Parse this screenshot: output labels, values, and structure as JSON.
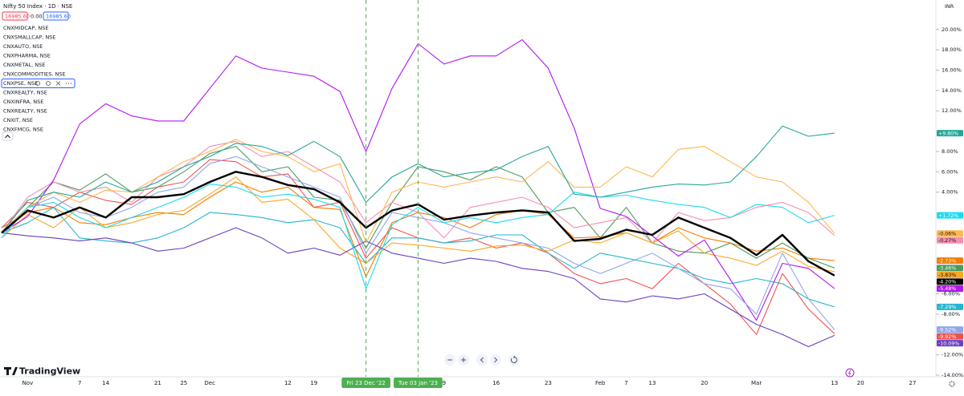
{
  "header": {
    "prices": [
      "16985.60",
      "0.00",
      "16985.60"
    ],
    "currency": "INR",
    "brand": "TradingView"
  },
  "chart_data": {
    "type": "line",
    "title": "Nifty 50 Index · 1D · NSE",
    "categories": [
      null,
      "Nov",
      null,
      "7",
      "14",
      null,
      "21",
      "25",
      "Dec",
      null,
      null,
      "12",
      "19",
      null,
      "Fri 23 Dec '22",
      null,
      "Tue 03 Jan '23",
      "9",
      null,
      "16",
      null,
      "23",
      null,
      "Feb",
      "7",
      "13",
      null,
      "20",
      null,
      "Mar",
      null,
      null,
      "13",
      "20",
      null,
      "27"
    ],
    "ylim": [
      -14,
      22.9
    ],
    "yticks": [
      {
        "value": 20,
        "label": "20.00%"
      },
      {
        "value": 18,
        "label": "18.00%"
      },
      {
        "value": 16,
        "label": "16.00%"
      },
      {
        "value": 14,
        "label": "14.00%"
      },
      {
        "value": 12,
        "label": "12.00%"
      },
      {
        "value": 8,
        "label": "8.00%"
      },
      {
        "value": 6,
        "label": "6.00%"
      },
      {
        "value": 4,
        "label": "4.00%"
      },
      {
        "value": -6,
        "label": "-6.00%"
      },
      {
        "value": -8,
        "label": "-8.00%"
      },
      {
        "value": -12,
        "label": "-12.00%"
      },
      {
        "value": -14,
        "label": "-14.00%"
      }
    ],
    "series": [
      {
        "color": "#000000",
        "values": [
          0,
          2.2,
          1.5,
          2.5,
          1.5,
          3.5,
          3.5,
          3.8,
          5,
          6,
          5.5,
          4.7,
          4.3,
          3,
          0.5,
          2.2,
          2.8,
          1.3,
          1.7,
          2,
          2.2,
          2,
          -0.8,
          -0.6,
          0.3,
          -0.2,
          1.5,
          0.5,
          -0.5,
          -2.2,
          -0.2,
          -2.8,
          -4.2,
          null,
          null,
          null
        ],
        "value_labels": [
          null,
          null,
          null,
          null,
          null,
          null,
          null,
          null,
          null,
          null,
          null,
          null,
          null,
          null,
          null,
          null,
          null,
          null,
          null,
          null,
          null,
          null,
          null,
          null,
          null,
          null,
          null,
          null,
          null,
          null,
          null,
          null,
          "-4.20%",
          null,
          null,
          null
        ]
      },
      {
        "name": "CNXMIDCAP, NSE",
        "color": "#f57c00",
        "values": [
          0.5,
          2,
          2.5,
          1,
          0.8,
          1.5,
          2,
          1.8,
          3.5,
          5,
          4,
          4.5,
          2.5,
          2.3,
          -4.3,
          1,
          2,
          1.5,
          0.5,
          1.8,
          2.2,
          1.8,
          -0.5,
          -0.4,
          0,
          -1,
          0.5,
          -0.5,
          -1,
          -1.8,
          -1.5,
          -2.5,
          -2.73,
          null,
          null,
          null
        ],
        "value_labels": [
          null,
          null,
          null,
          null,
          null,
          null,
          null,
          null,
          null,
          null,
          null,
          null,
          null,
          null,
          null,
          null,
          null,
          null,
          null,
          null,
          null,
          null,
          null,
          null,
          null,
          null,
          null,
          null,
          null,
          null,
          null,
          null,
          "-2.73%",
          null,
          null,
          null
        ]
      },
      {
        "name": "CNXSMALLCAP, NSE",
        "color": "#ef5350",
        "values": [
          0.5,
          3,
          2.5,
          4,
          3.2,
          2.8,
          4.5,
          5,
          7.2,
          7,
          5.5,
          5.8,
          2.5,
          3,
          -2.5,
          0.5,
          -0.5,
          -1,
          -0.5,
          -1.5,
          -1,
          -2,
          -4,
          -5,
          -4.5,
          -5.5,
          -3,
          -5,
          -7,
          -10,
          -4,
          -7.5,
          -9.92,
          null,
          null,
          null
        ],
        "value_labels": [
          null,
          null,
          null,
          null,
          null,
          null,
          null,
          null,
          null,
          null,
          null,
          null,
          null,
          null,
          null,
          null,
          null,
          null,
          null,
          null,
          null,
          null,
          null,
          null,
          null,
          null,
          null,
          null,
          null,
          null,
          null,
          null,
          "-9.92%",
          null,
          null,
          null
        ]
      },
      {
        "name": "CNXAUTO, NSE",
        "color": "#4e9a5a",
        "values": [
          0,
          2.5,
          5,
          4.2,
          5.8,
          4,
          4.5,
          6,
          7.8,
          8.5,
          6,
          6.5,
          3.5,
          3.2,
          -1.5,
          3,
          6.5,
          6,
          5.2,
          6.5,
          5.5,
          2,
          2.5,
          -0.5,
          2.5,
          -1,
          -1.8,
          -2,
          -1,
          -2.5,
          -1,
          -2.5,
          -3.46,
          null,
          null,
          null
        ],
        "value_labels": [
          null,
          null,
          null,
          null,
          null,
          null,
          null,
          null,
          null,
          null,
          null,
          null,
          null,
          null,
          null,
          null,
          null,
          null,
          null,
          null,
          null,
          null,
          null,
          null,
          null,
          null,
          null,
          null,
          null,
          null,
          null,
          null,
          "-3.46%",
          null,
          null,
          null
        ]
      },
      {
        "name": "CNXPHARMA, NSE",
        "color": "#26b5d0",
        "values": [
          0,
          1,
          2.5,
          -0.5,
          -0.8,
          -1,
          -0.5,
          0.5,
          2,
          1.8,
          1.5,
          1,
          1.3,
          0.5,
          -3,
          -0.5,
          -0.5,
          -1,
          -0.8,
          -0.2,
          -0.2,
          -2,
          -3.5,
          -2,
          -2.5,
          -3,
          -3.5,
          -4.5,
          -5,
          -4.5,
          -5,
          -6.5,
          -7.29,
          null,
          null,
          null
        ],
        "value_labels": [
          null,
          null,
          null,
          null,
          null,
          null,
          null,
          null,
          null,
          null,
          null,
          null,
          null,
          null,
          null,
          null,
          null,
          null,
          null,
          null,
          null,
          null,
          null,
          null,
          null,
          null,
          null,
          null,
          null,
          null,
          null,
          null,
          "-7.29%",
          null,
          null,
          null
        ]
      },
      {
        "name": "CNXMETAL, NSE",
        "color": "#f48fb1",
        "values": [
          0,
          3.5,
          5,
          4,
          4.5,
          3,
          5.5,
          6.5,
          8.5,
          9,
          7.5,
          8,
          6.5,
          5,
          1,
          3,
          2,
          -0.5,
          2.5,
          3,
          3.5,
          2.5,
          0.5,
          1,
          1.5,
          -1,
          2,
          1.2,
          1.5,
          2.5,
          3,
          2,
          -0.27,
          null,
          null,
          null
        ],
        "value_labels": [
          null,
          null,
          null,
          null,
          null,
          null,
          null,
          null,
          null,
          null,
          null,
          null,
          null,
          null,
          null,
          null,
          null,
          null,
          null,
          null,
          null,
          null,
          null,
          null,
          null,
          null,
          null,
          null,
          null,
          null,
          null,
          null,
          "-0.27%",
          null,
          null,
          null
        ]
      },
      {
        "name": "CNXCOMMODITIES, NSE",
        "color": "#f9a825",
        "values": [
          -0.5,
          1.8,
          0.5,
          2.5,
          0.5,
          1,
          1.8,
          2.2,
          3.8,
          5.5,
          3,
          3.3,
          1.3,
          -1.5,
          -3,
          -1,
          -1.2,
          -1.5,
          -1.8,
          -1.3,
          -1.2,
          -1.8,
          -0.7,
          -1,
          0,
          -1,
          0.2,
          -2,
          -2.5,
          -3.2,
          -1.8,
          -3.3,
          -3.83,
          null,
          null,
          null
        ],
        "value_labels": [
          null,
          null,
          null,
          null,
          null,
          null,
          null,
          null,
          null,
          null,
          null,
          null,
          null,
          null,
          null,
          null,
          null,
          null,
          null,
          null,
          null,
          null,
          null,
          null,
          null,
          null,
          null,
          null,
          null,
          null,
          null,
          null,
          "-3.83%",
          null,
          null,
          null
        ]
      },
      {
        "name": "CNXPSE, NSE",
        "color": "#b316f2",
        "values": [
          0,
          1.6,
          5.2,
          10.7,
          12.7,
          11.5,
          11,
          11,
          14.2,
          17.4,
          16.2,
          15.8,
          15.4,
          13.9,
          8,
          14.2,
          18.6,
          16.6,
          17.4,
          17.4,
          19,
          16.2,
          10.3,
          2.4,
          1.6,
          -0.3,
          -2.3,
          -0.7,
          -4.6,
          -8.6,
          -3,
          -3.5,
          -5.48,
          null,
          null,
          null
        ],
        "value_labels": [
          null,
          null,
          null,
          null,
          null,
          null,
          null,
          null,
          null,
          null,
          null,
          null,
          null,
          null,
          null,
          null,
          null,
          null,
          null,
          null,
          null,
          null,
          null,
          null,
          null,
          null,
          null,
          null,
          null,
          null,
          null,
          null,
          "-5.48%",
          null,
          null,
          null
        ]
      },
      {
        "name": "CNXREALTY, NSE",
        "color": "#6a3fc0",
        "values": [
          0,
          -0.3,
          -0.5,
          -0.8,
          -0.5,
          -1,
          -1.8,
          -1.5,
          -0.5,
          0.5,
          -0.5,
          -2,
          -1.5,
          -2.2,
          -0.8,
          -2,
          -2.5,
          -3,
          -2.5,
          -2.8,
          -3.5,
          -3.8,
          -4.5,
          -6.5,
          -6.8,
          -6.2,
          -6.5,
          -6,
          -7.5,
          -9,
          -10,
          -11.2,
          -10.09,
          null,
          null,
          null
        ],
        "value_labels": [
          null,
          null,
          null,
          null,
          null,
          null,
          null,
          null,
          null,
          null,
          null,
          null,
          null,
          null,
          null,
          null,
          null,
          null,
          null,
          null,
          null,
          null,
          null,
          null,
          null,
          null,
          null,
          null,
          null,
          null,
          null,
          null,
          "-10.09%",
          null,
          null,
          null
        ]
      },
      {
        "name": "CNXINFRA, NSE",
        "color": "#8fa7e8",
        "values": [
          0,
          2.5,
          3.5,
          2,
          1.5,
          2.5,
          4,
          4.5,
          6.8,
          7.5,
          6.5,
          5.5,
          4.5,
          3.5,
          -2,
          2,
          1.5,
          1,
          0,
          -0.5,
          -1,
          -1.5,
          -3,
          -4,
          -3,
          -2,
          -3.5,
          -5,
          -5.5,
          -8,
          -2,
          -6.5,
          -9.52,
          null,
          null,
          null
        ],
        "value_labels": [
          null,
          null,
          null,
          null,
          null,
          null,
          null,
          null,
          null,
          null,
          null,
          null,
          null,
          null,
          null,
          null,
          null,
          null,
          null,
          null,
          null,
          null,
          null,
          null,
          null,
          null,
          null,
          null,
          null,
          null,
          null,
          null,
          "-9.52%",
          null,
          null,
          null
        ]
      },
      {
        "name": "CNXREALTY, NSE",
        "color": "#ffb74d",
        "values": [
          0,
          2.5,
          4,
          3,
          4.2,
          4,
          5.5,
          7,
          8,
          9.2,
          8,
          7.5,
          6,
          6.8,
          -1,
          4,
          5,
          4.5,
          5,
          5.5,
          5,
          7,
          4.5,
          4.5,
          6.5,
          5.5,
          8.2,
          8.5,
          7,
          5.5,
          5,
          3,
          -0.06,
          null,
          null,
          null
        ],
        "value_labels": [
          null,
          null,
          null,
          null,
          null,
          null,
          null,
          null,
          null,
          null,
          null,
          null,
          null,
          null,
          null,
          null,
          null,
          null,
          null,
          null,
          null,
          null,
          null,
          null,
          null,
          null,
          null,
          null,
          null,
          null,
          null,
          null,
          "-0.06%",
          null,
          null,
          null
        ]
      },
      {
        "name": "CNXIT, NSE",
        "color": "#18dcf0",
        "values": [
          -0.5,
          2.5,
          3,
          1.5,
          0.5,
          1.5,
          2.5,
          3.5,
          4.8,
          4.5,
          3.5,
          3.8,
          3.3,
          2.5,
          -5.5,
          0.8,
          2.5,
          1,
          1.5,
          1,
          1.5,
          1.8,
          4,
          3.5,
          3.7,
          3.2,
          2.8,
          2.5,
          1.5,
          2.8,
          2.5,
          1,
          1.72,
          null,
          null,
          null
        ],
        "value_labels": [
          null,
          null,
          null,
          null,
          null,
          null,
          null,
          null,
          null,
          null,
          null,
          null,
          null,
          null,
          null,
          null,
          null,
          null,
          null,
          null,
          null,
          null,
          null,
          null,
          null,
          null,
          null,
          null,
          null,
          null,
          null,
          null,
          "+1.72%",
          null,
          null,
          null
        ]
      },
      {
        "name": "CNXFMCG, NSE",
        "color": "#26a69a",
        "values": [
          0,
          3.2,
          4,
          3.5,
          5,
          4,
          5,
          6.5,
          7.5,
          8.8,
          8.5,
          7.6,
          9,
          7.5,
          3,
          5.5,
          6.8,
          5.5,
          5.9,
          6.2,
          7.5,
          8.5,
          3.8,
          3.5,
          4,
          4.5,
          4.8,
          4.7,
          5,
          7.5,
          10.5,
          9.5,
          9.8,
          null,
          null,
          null
        ],
        "value_labels": [
          null,
          null,
          null,
          null,
          null,
          null,
          null,
          null,
          null,
          null,
          null,
          null,
          null,
          null,
          null,
          null,
          null,
          null,
          null,
          null,
          null,
          null,
          null,
          null,
          null,
          null,
          null,
          null,
          null,
          null,
          null,
          null,
          "+9.80%",
          null,
          null,
          null
        ]
      }
    ]
  }
}
